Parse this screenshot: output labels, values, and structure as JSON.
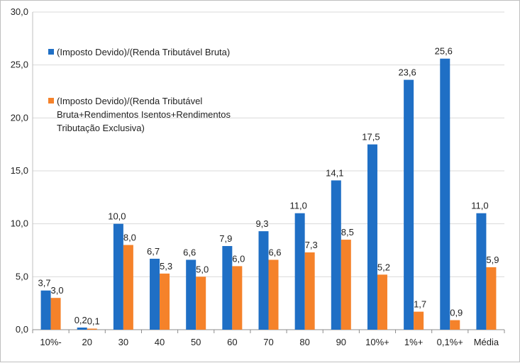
{
  "chart_data": {
    "type": "bar",
    "categories": [
      "10%-",
      "20",
      "30",
      "40",
      "50",
      "60",
      "70",
      "80",
      "90",
      "10%+",
      "1%+",
      "0,1%+",
      "Média"
    ],
    "series": [
      {
        "name": "(Imposto Devido)/(Renda Tributável Bruta)",
        "values": [
          3.7,
          0.2,
          10.0,
          6.7,
          6.6,
          7.9,
          9.3,
          11.0,
          14.1,
          17.5,
          23.6,
          25.6,
          11.0
        ],
        "labels": [
          "3,7",
          "0,2",
          "10,0",
          "6,7",
          "6,6",
          "7,9",
          "9,3",
          "11,0",
          "14,1",
          "17,5",
          "23,6",
          "25,6",
          "11,0"
        ],
        "color": "#1f6fc5"
      },
      {
        "name": "(Imposto Devido)/(Renda Tributável Bruta+Rendimentos Isentos+Rendimentos Tributação Exclusiva)",
        "name_lines": [
          "(Imposto Devido)/(Renda Tributável",
          "Bruta+Rendimentos Isentos+Rendimentos",
          "Tributação Exclusiva)"
        ],
        "values": [
          3.0,
          0.1,
          8.0,
          5.3,
          5.0,
          6.0,
          6.6,
          7.3,
          8.5,
          5.2,
          1.7,
          0.9,
          5.9
        ],
        "labels": [
          "3,0",
          "0,1",
          "8,0",
          "5,3",
          "5,0",
          "6,0",
          "6,6",
          "7,3",
          "8,5",
          "5,2",
          "1,7",
          "0,9",
          "5,9"
        ],
        "color": "#f5822a"
      }
    ],
    "ylim": [
      0,
      30
    ],
    "yticks": [
      0,
      5,
      10,
      15,
      20,
      25,
      30
    ],
    "ytick_labels": [
      "0,0",
      "5,0",
      "10,0",
      "15,0",
      "20,0",
      "25,0",
      "30,0"
    ],
    "grid": true,
    "legend_position": "top-left, inside plot"
  }
}
